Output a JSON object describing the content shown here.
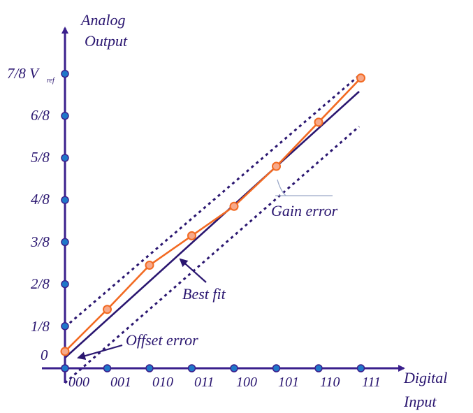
{
  "diagram": {
    "y_axis_title": {
      "line1": "Analog",
      "line2": "Output"
    },
    "x_axis_title": {
      "line1": "Digital",
      "line2": "Input"
    },
    "y_tick_labels": [
      "0",
      "1/8",
      "2/8",
      "3/8",
      "4/8",
      "5/8",
      "6/8",
      "7/8 V"
    ],
    "vref_subscript": "ref",
    "x_tick_labels": [
      "000",
      "001",
      "010",
      "011",
      "100",
      "101",
      "110",
      "111"
    ],
    "annotations": {
      "offset_error": "Offset error",
      "best_fit": "Best fit",
      "gain_error": "Gain error"
    },
    "actual_output_eighths": [
      0.4,
      1.4,
      2.45,
      3.15,
      3.85,
      4.8,
      5.85,
      6.9
    ],
    "colors": {
      "axis": "#3a1f8c",
      "axis_marker_fill": "#1f77c9",
      "actual_curve": "#f26a22",
      "actual_marker_fill": "#f7a98a",
      "best_fit": "#2a1670",
      "bounds_dashed": "#2a1670",
      "gain_angle_line": "#9aa8c8",
      "label_text": "#2a1670"
    }
  }
}
